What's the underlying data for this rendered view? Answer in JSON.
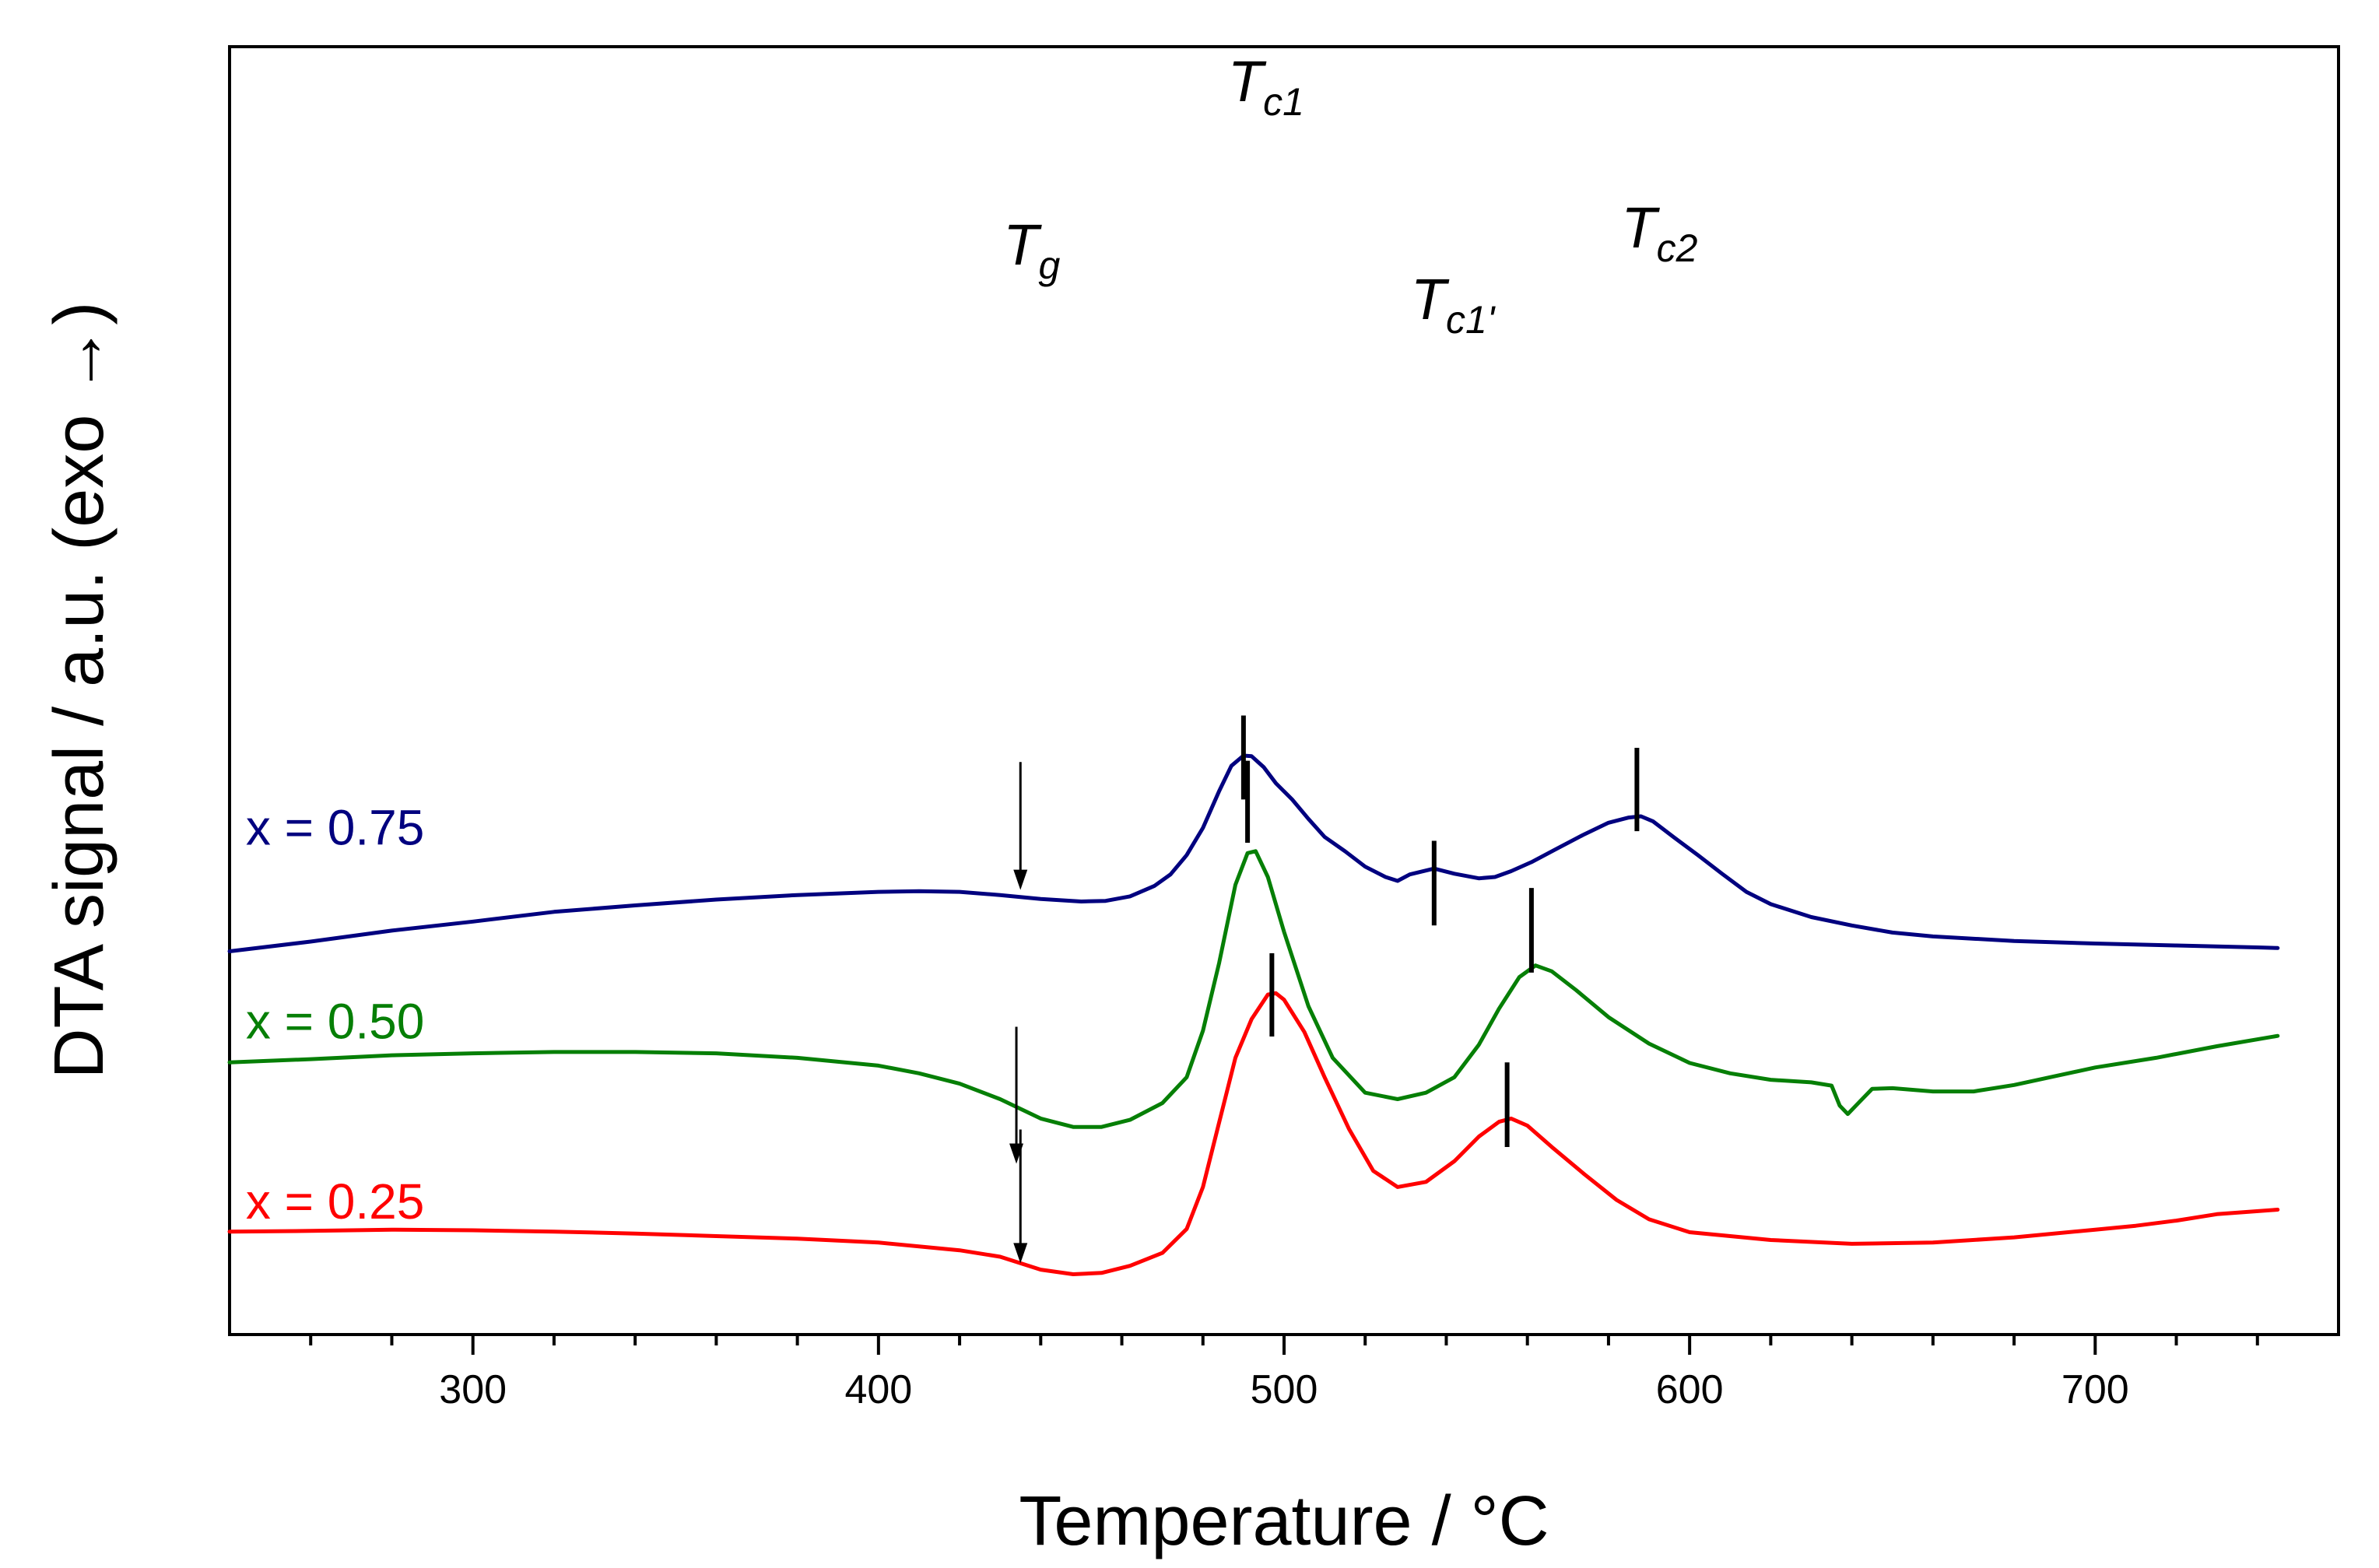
{
  "chart_data": {
    "type": "line",
    "title": "",
    "xlabel": "Temperature / °C",
    "ylabel": "DTA signal / a.u. (exo →)",
    "xlim": [
      240,
      760
    ],
    "ylim": [
      0,
      1000
    ],
    "x_ticks": [
      300,
      400,
      500,
      600,
      700
    ],
    "x_tick_labels": [
      "300",
      "400",
      "500",
      "600",
      "700"
    ],
    "y_ticks_shown": false,
    "legend": "inline labels at left",
    "annotations": [
      {
        "name": "Tg",
        "base": "T",
        "sub": "g",
        "x": 435
      },
      {
        "name": "Tc1",
        "base": "T",
        "sub": "c1",
        "x": 490
      },
      {
        "name": "Tc1prime",
        "base": "T",
        "sub": "c1'",
        "x": 537
      },
      {
        "name": "Tc2",
        "base": "T",
        "sub": "c2",
        "x": 587
      }
    ],
    "series": [
      {
        "name": "x = 0.75",
        "color": "#00007f",
        "label_x": 244,
        "label_y": 650,
        "markers": [
          {
            "x": 490,
            "y0": 850,
            "y1": 720
          },
          {
            "x": 537,
            "y0": 656,
            "y1": 525
          },
          {
            "x": 587,
            "y0": 800,
            "y1": 671
          }
        ],
        "tg_arrow": {
          "x": 435,
          "y_top": 778,
          "y_tip": 580
        },
        "points": [
          [
            240,
            485
          ],
          [
            260,
            500
          ],
          [
            280,
            517
          ],
          [
            300,
            531
          ],
          [
            320,
            546
          ],
          [
            340,
            556
          ],
          [
            360,
            565
          ],
          [
            380,
            572
          ],
          [
            400,
            577
          ],
          [
            410,
            578
          ],
          [
            420,
            577
          ],
          [
            430,
            572
          ],
          [
            440,
            566
          ],
          [
            450,
            562
          ],
          [
            456,
            563
          ],
          [
            462,
            570
          ],
          [
            468,
            586
          ],
          [
            472,
            604
          ],
          [
            476,
            634
          ],
          [
            480,
            676
          ],
          [
            484,
            733
          ],
          [
            487,
            772
          ],
          [
            490,
            788
          ],
          [
            492,
            787
          ],
          [
            495,
            770
          ],
          [
            498,
            745
          ],
          [
            502,
            720
          ],
          [
            506,
            690
          ],
          [
            510,
            662
          ],
          [
            515,
            640
          ],
          [
            520,
            616
          ],
          [
            525,
            600
          ],
          [
            528,
            594
          ],
          [
            531,
            604
          ],
          [
            537,
            613
          ],
          [
            542,
            605
          ],
          [
            548,
            598
          ],
          [
            552,
            600
          ],
          [
            556,
            609
          ],
          [
            561,
            623
          ],
          [
            567,
            643
          ],
          [
            574,
            666
          ],
          [
            580,
            684
          ],
          [
            585,
            692
          ],
          [
            588,
            694
          ],
          [
            591,
            686
          ],
          [
            596,
            662
          ],
          [
            602,
            634
          ],
          [
            608,
            605
          ],
          [
            614,
            577
          ],
          [
            620,
            558
          ],
          [
            630,
            538
          ],
          [
            640,
            525
          ],
          [
            650,
            514
          ],
          [
            660,
            508
          ],
          [
            680,
            501
          ],
          [
            700,
            497
          ],
          [
            720,
            494
          ],
          [
            740,
            491
          ],
          [
            745,
            490
          ]
        ]
      },
      {
        "name": "x = 0.50",
        "color": "#067f06",
        "label_x": 244,
        "label_y": 350,
        "markers": [
          {
            "x": 491,
            "y0": 780,
            "y1": 653
          },
          {
            "x": 561,
            "y0": 583,
            "y1": 452
          }
        ],
        "tg_arrow": {
          "x": 434,
          "y_top": 368,
          "y_tip": 156
        },
        "points": [
          [
            240,
            313
          ],
          [
            260,
            318
          ],
          [
            280,
            324
          ],
          [
            300,
            327
          ],
          [
            320,
            329
          ],
          [
            340,
            329
          ],
          [
            360,
            327
          ],
          [
            380,
            320
          ],
          [
            400,
            308
          ],
          [
            410,
            296
          ],
          [
            420,
            280
          ],
          [
            430,
            256
          ],
          [
            440,
            226
          ],
          [
            448,
            213
          ],
          [
            455,
            213
          ],
          [
            462,
            224
          ],
          [
            470,
            250
          ],
          [
            476,
            290
          ],
          [
            480,
            362
          ],
          [
            484,
            467
          ],
          [
            488,
            588
          ],
          [
            491,
            637
          ],
          [
            493,
            640
          ],
          [
            496,
            600
          ],
          [
            500,
            515
          ],
          [
            506,
            400
          ],
          [
            512,
            320
          ],
          [
            520,
            266
          ],
          [
            528,
            256
          ],
          [
            535,
            266
          ],
          [
            542,
            290
          ],
          [
            548,
            340
          ],
          [
            553,
            396
          ],
          [
            558,
            445
          ],
          [
            562,
            463
          ],
          [
            566,
            454
          ],
          [
            572,
            425
          ],
          [
            580,
            383
          ],
          [
            590,
            342
          ],
          [
            600,
            312
          ],
          [
            610,
            296
          ],
          [
            620,
            286
          ],
          [
            630,
            282
          ],
          [
            635,
            277
          ],
          [
            637,
            246
          ],
          [
            639,
            233
          ],
          [
            641,
            246
          ],
          [
            645,
            272
          ],
          [
            650,
            273
          ],
          [
            660,
            268
          ],
          [
            670,
            268
          ],
          [
            680,
            278
          ],
          [
            700,
            305
          ],
          [
            715,
            320
          ],
          [
            730,
            338
          ],
          [
            745,
            354
          ]
        ]
      },
      {
        "name": "x = 0.25",
        "color": "#ff0000",
        "label_x": 244,
        "label_y": 71,
        "markers": [
          {
            "x": 497,
            "y0": 482,
            "y1": 353
          },
          {
            "x": 555,
            "y0": 313,
            "y1": 182
          }
        ],
        "tg_arrow": {
          "x": 435,
          "y_top": 209,
          "y_tip": 2
        },
        "points": [
          [
            240,
            51
          ],
          [
            260,
            52
          ],
          [
            280,
            54
          ],
          [
            300,
            53
          ],
          [
            320,
            51
          ],
          [
            340,
            48
          ],
          [
            360,
            44
          ],
          [
            380,
            40
          ],
          [
            400,
            34
          ],
          [
            420,
            22
          ],
          [
            430,
            12
          ],
          [
            440,
            -8
          ],
          [
            448,
            -15
          ],
          [
            455,
            -13
          ],
          [
            462,
            -2
          ],
          [
            470,
            18
          ],
          [
            476,
            55
          ],
          [
            480,
            120
          ],
          [
            484,
            220
          ],
          [
            488,
            320
          ],
          [
            492,
            380
          ],
          [
            496,
            418
          ],
          [
            498,
            420
          ],
          [
            500,
            410
          ],
          [
            505,
            360
          ],
          [
            510,
            290
          ],
          [
            516,
            210
          ],
          [
            522,
            145
          ],
          [
            528,
            120
          ],
          [
            535,
            128
          ],
          [
            542,
            160
          ],
          [
            548,
            198
          ],
          [
            553,
            221
          ],
          [
            556,
            226
          ],
          [
            560,
            215
          ],
          [
            566,
            182
          ],
          [
            574,
            140
          ],
          [
            582,
            100
          ],
          [
            590,
            70
          ],
          [
            600,
            50
          ],
          [
            620,
            38
          ],
          [
            640,
            32
          ],
          [
            660,
            34
          ],
          [
            680,
            42
          ],
          [
            700,
            54
          ],
          [
            710,
            60
          ],
          [
            720,
            68
          ],
          [
            730,
            78
          ],
          [
            745,
            85
          ]
        ]
      }
    ]
  }
}
